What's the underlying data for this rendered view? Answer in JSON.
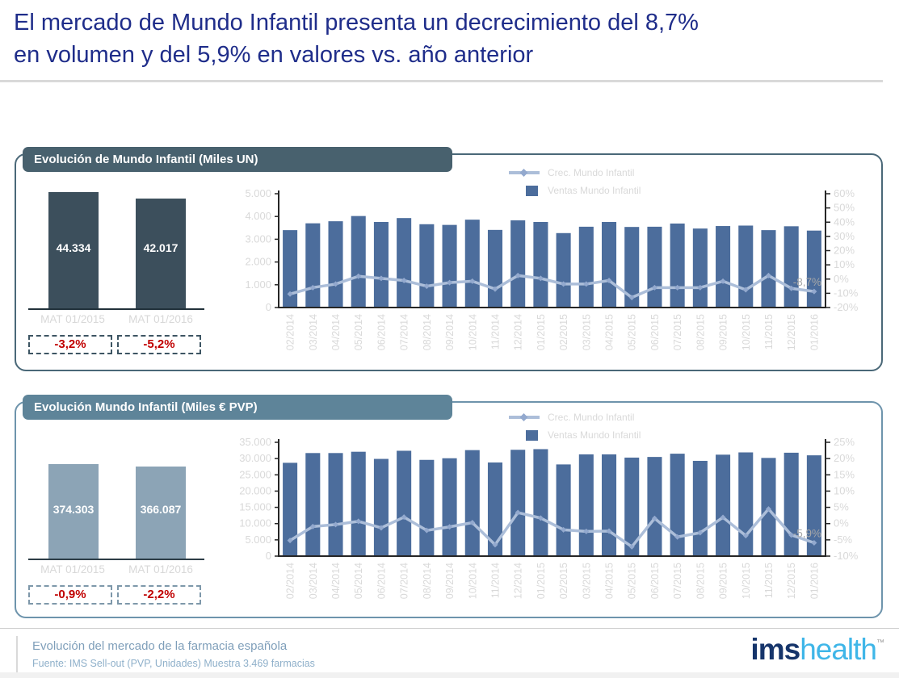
{
  "title": {
    "line1": "El mercado de Mundo Infantil presenta un decrecimiento del 8,7%",
    "line2": "en volumen y del 5,9% en valores vs. año anterior"
  },
  "chart_data": [
    {
      "id": "mat-volume-summary",
      "type": "bar",
      "title": "Evolución de Mundo Infantil (Miles UN)",
      "ylabel": "Miles UN",
      "categories": [
        "MAT 01/2015",
        "MAT 01/2016"
      ],
      "values": [
        44334,
        42017
      ],
      "value_labels": [
        "44.334",
        "42.017"
      ],
      "growth_labels": [
        "-3,2%",
        "-5,2%"
      ]
    },
    {
      "id": "monthly-volume-combo",
      "type": "bar+line",
      "title": "Evolución de Mundo Infantil (Miles UN)",
      "grid": false,
      "legend_position": "top-right",
      "categories": [
        "02/2014",
        "03/2014",
        "04/2014",
        "05/2014",
        "06/2014",
        "07/2014",
        "08/2014",
        "09/2014",
        "10/2014",
        "11/2014",
        "12/2014",
        "01/2015",
        "02/2015",
        "03/2015",
        "04/2015",
        "05/2015",
        "06/2015",
        "07/2015",
        "08/2015",
        "09/2015",
        "10/2015",
        "11/2015",
        "12/2015",
        "01/2016"
      ],
      "series": [
        {
          "name": "Ventas Mundo Infantil",
          "type": "bar",
          "axis": "left",
          "values": [
            3400,
            3700,
            3790,
            4020,
            3760,
            3930,
            3660,
            3630,
            3860,
            3410,
            3830,
            3760,
            3270,
            3550,
            3760,
            3540,
            3550,
            3690,
            3470,
            3580,
            3600,
            3400,
            3570,
            3380
          ]
        },
        {
          "name": "Crec. Mundo Infantil",
          "type": "line",
          "axis": "right",
          "values_pct": [
            -10.5,
            -6,
            -3.5,
            2,
            0.5,
            -1,
            -5,
            -2.5,
            -1.5,
            -7,
            2.5,
            0.5,
            -3.5,
            -3.5,
            -1,
            -13,
            -6,
            -6,
            -6,
            -1.5,
            -7.5,
            2.5,
            -6.5,
            -8.7
          ]
        }
      ],
      "left_axis": {
        "min": 0,
        "max": 5000,
        "step": 1000,
        "tick_labels": [
          "0",
          "1.000",
          "2.000",
          "3.000",
          "4.000",
          "5.000"
        ]
      },
      "right_axis": {
        "min": -20,
        "max": 60,
        "step": 10,
        "tick_labels": [
          "-20%",
          "-10%",
          "0%",
          "10%",
          "20%",
          "30%",
          "40%",
          "50%",
          "60%"
        ]
      },
      "last_point_label": "-8,7%"
    },
    {
      "id": "mat-value-summary",
      "type": "bar",
      "title": "Evolución Mundo Infantil (Miles € PVP)",
      "ylabel": "Miles € PVP",
      "categories": [
        "MAT 01/2015",
        "MAT 01/2016"
      ],
      "values": [
        374303,
        366087
      ],
      "value_labels": [
        "374.303",
        "366.087"
      ],
      "growth_labels": [
        "-0,9%",
        "-2,2%"
      ]
    },
    {
      "id": "monthly-value-combo",
      "type": "bar+line",
      "title": "Evolución Mundo Infantil (Miles € PVP)",
      "grid": false,
      "legend_position": "top-right",
      "categories": [
        "02/2014",
        "03/2014",
        "04/2014",
        "05/2014",
        "06/2014",
        "07/2014",
        "08/2014",
        "09/2014",
        "10/2014",
        "11/2014",
        "12/2014",
        "01/2015",
        "02/2015",
        "03/2015",
        "04/2015",
        "05/2015",
        "06/2015",
        "07/2015",
        "08/2015",
        "09/2015",
        "10/2015",
        "11/2015",
        "12/2015",
        "01/2016"
      ],
      "series": [
        {
          "name": "Ventas Mundo Infantil",
          "type": "bar",
          "axis": "left",
          "values": [
            28700,
            31700,
            31700,
            32100,
            29900,
            32400,
            29600,
            30100,
            32600,
            28800,
            32700,
            32900,
            28200,
            31300,
            31300,
            30300,
            30500,
            31500,
            29300,
            31200,
            31900,
            30200,
            31800,
            31000
          ]
        },
        {
          "name": "Crec. Mundo Infantil",
          "type": "line",
          "axis": "right",
          "values_pct": [
            -5.2,
            -0.9,
            -0.3,
            0.7,
            -1.3,
            2.0,
            -2.1,
            -1.0,
            0.3,
            -6.5,
            3.4,
            1.7,
            -1.9,
            -2.4,
            -2.3,
            -7.1,
            1.6,
            -4.1,
            -2.8,
            1.9,
            -3.7,
            4.5,
            -3.5,
            -5.9
          ]
        }
      ],
      "left_axis": {
        "min": 0,
        "max": 35000,
        "step": 5000,
        "tick_labels": [
          "0",
          "5.000",
          "10.000",
          "15.000",
          "20.000",
          "25.000",
          "30.000",
          "35.000"
        ]
      },
      "right_axis": {
        "min": -10,
        "max": 25,
        "step": 5,
        "tick_labels": [
          "-10%",
          "-5%",
          "0%",
          "5%",
          "10%",
          "15%",
          "20%",
          "25%"
        ]
      },
      "last_point_label": "-5,9%"
    }
  ],
  "footer": {
    "context": "Evolución del mercado de la farmacia española",
    "source": "Fuente: IMS Sell-out  (PVP, Unidades) Muestra 3.469  farmacias",
    "logo": {
      "part1": "ims",
      "part2": "health",
      "tm": "™"
    }
  },
  "colors": {
    "title_navy": "#1F2D8A",
    "section1_border": "#4A6878",
    "section1_header_bg": "#48616E",
    "section2_border": "#6E94AC",
    "section2_header_bg": "#5E8499",
    "summary_bar_dark": "#3C4F5C",
    "summary_bar_light": "#8CA4B6",
    "bar_blue": "#4C6D9C",
    "line_blue": "#ACBED9",
    "marker_blue": "#93A9CE",
    "negative_red": "#C00000",
    "tick_gray": "#D9D9D9",
    "axis_dark": "#262626",
    "end_label_gray": "#A8A8A8",
    "logo_navy": "#16356B",
    "logo_cyan": "#3FB6E8"
  }
}
